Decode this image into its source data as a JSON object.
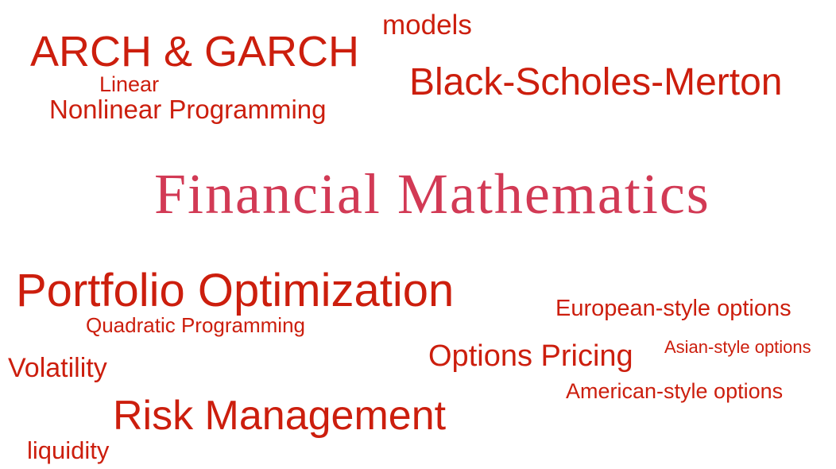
{
  "word_cloud": {
    "title": "Financial Mathematics",
    "words": {
      "models": "models",
      "arch_garch": "ARCH & GARCH",
      "linear": "Linear",
      "nonlinear_programming": "Nonlinear Programming",
      "black_scholes_merton": "Black-Scholes-Merton",
      "portfolio_optimization": "Portfolio Optimization",
      "quadratic_programming": "Quadratic Programming",
      "european_options": "European-style options",
      "volatility": "Volatility",
      "options_pricing": "Options Pricing",
      "asian_options": "Asian-style options",
      "american_options": "American-style options",
      "risk_management": "Risk Management",
      "liquidity": "liquidity"
    },
    "colors": {
      "word": "#cc1e0d",
      "title": "#d23a55"
    }
  }
}
